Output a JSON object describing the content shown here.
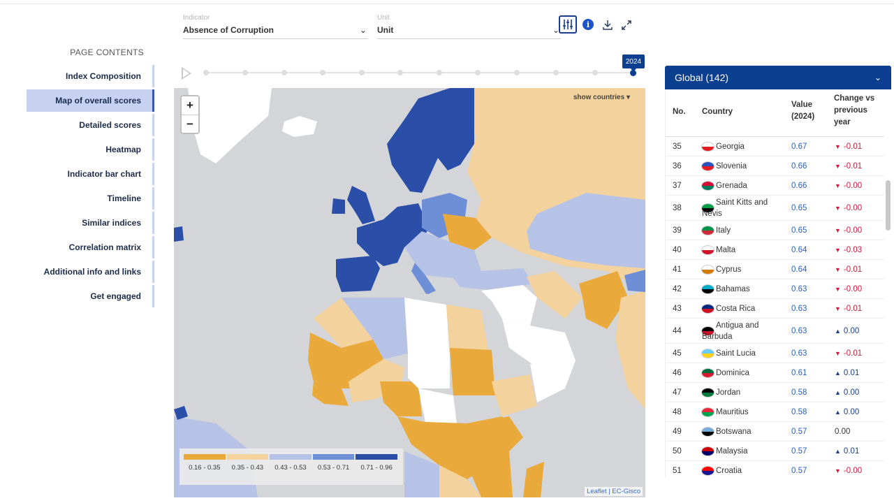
{
  "sidebar": {
    "heading": "PAGE CONTENTS",
    "items": [
      {
        "label": "Index Composition"
      },
      {
        "label": "Map of overall scores",
        "active": true
      },
      {
        "label": "Detailed scores"
      },
      {
        "label": "Heatmap"
      },
      {
        "label": "Indicator bar chart"
      },
      {
        "label": "Timeline"
      },
      {
        "label": "Similar indices"
      },
      {
        "label": "Correlation matrix"
      },
      {
        "label": "Additional info and links"
      },
      {
        "label": "Get engaged"
      }
    ]
  },
  "controls": {
    "indicator": {
      "label": "Indicator",
      "value": "Absence of Corruption"
    },
    "unit": {
      "label": "Unit",
      "value": "Unit"
    },
    "icons": [
      "filter-sliders-icon",
      "info-icon",
      "download-icon",
      "expand-icon"
    ]
  },
  "timeline": {
    "selected_year": "2024"
  },
  "map": {
    "zoom_in": "+",
    "zoom_out": "−",
    "show_countries": "show countries",
    "legend": [
      {
        "range": "0.16 - 0.35",
        "color": "#e9a93b"
      },
      {
        "range": "0.35 - 0.43",
        "color": "#f3d29e"
      },
      {
        "range": "0.43 - 0.53",
        "color": "#b6c3e6"
      },
      {
        "range": "0.53 - 0.71",
        "color": "#6e8fd6"
      },
      {
        "range": "0.71 - 0.96",
        "color": "#2b4fa8"
      }
    ],
    "attribution_leaflet": "Leaflet",
    "attribution_sep": " | ",
    "attribution_source": "EC-Gisco"
  },
  "panel": {
    "title": "Global (142)",
    "columns": {
      "no": "No.",
      "country": "Country",
      "value": "Value\n(2024)",
      "change": "Change vs\nprevious\nyear"
    },
    "rows": [
      {
        "no": "35",
        "country": "Georgia",
        "value": "0.67",
        "change": "-0.01",
        "dir": "down",
        "flag": [
          "#ffffff",
          "#e31b23"
        ]
      },
      {
        "no": "36",
        "country": "Slovenia",
        "value": "0.66",
        "change": "-0.01",
        "dir": "down",
        "flag": [
          "#2a52be",
          "#e31b23"
        ]
      },
      {
        "no": "37",
        "country": "Grenada",
        "value": "0.66",
        "change": "-0.00",
        "dir": "down",
        "flag": [
          "#d21034",
          "#007a5e"
        ]
      },
      {
        "no": "38",
        "country": "Saint Kitts and Nevis",
        "value": "0.65",
        "change": "-0.00",
        "dir": "down",
        "flag": [
          "#009e49",
          "#000000"
        ],
        "tall": true
      },
      {
        "no": "39",
        "country": "Italy",
        "value": "0.65",
        "change": "-0.00",
        "dir": "down",
        "flag": [
          "#009246",
          "#ce2b37"
        ]
      },
      {
        "no": "40",
        "country": "Malta",
        "value": "0.64",
        "change": "-0.03",
        "dir": "down",
        "flag": [
          "#ffffff",
          "#cf142b"
        ]
      },
      {
        "no": "41",
        "country": "Cyprus",
        "value": "0.64",
        "change": "-0.01",
        "dir": "down",
        "flag": [
          "#ffffff",
          "#d57800"
        ]
      },
      {
        "no": "42",
        "country": "Bahamas",
        "value": "0.63",
        "change": "-0.00",
        "dir": "down",
        "flag": [
          "#00abc9",
          "#000000"
        ]
      },
      {
        "no": "43",
        "country": "Costa Rica",
        "value": "0.63",
        "change": "-0.01",
        "dir": "down",
        "flag": [
          "#002b7f",
          "#ce1126"
        ]
      },
      {
        "no": "44",
        "country": "Antigua and Barbuda",
        "value": "0.63",
        "change": "0.00",
        "dir": "up",
        "flag": [
          "#000000",
          "#ce1126"
        ],
        "tall": true
      },
      {
        "no": "45",
        "country": "Saint Lucia",
        "value": "0.63",
        "change": "-0.01",
        "dir": "down",
        "flag": [
          "#66ccff",
          "#fcd116"
        ]
      },
      {
        "no": "46",
        "country": "Dominica",
        "value": "0.61",
        "change": "0.01",
        "dir": "up",
        "flag": [
          "#006b3f",
          "#d41c30"
        ]
      },
      {
        "no": "47",
        "country": "Jordan",
        "value": "0.58",
        "change": "0.00",
        "dir": "up",
        "flag": [
          "#000000",
          "#007a3d"
        ]
      },
      {
        "no": "48",
        "country": "Mauritius",
        "value": "0.58",
        "change": "0.00",
        "dir": "up",
        "flag": [
          "#ea2839",
          "#00a551"
        ]
      },
      {
        "no": "49",
        "country": "Botswana",
        "value": "0.57",
        "change": "0.00",
        "dir": "none",
        "flag": [
          "#75aadb",
          "#000000"
        ]
      },
      {
        "no": "50",
        "country": "Malaysia",
        "value": "0.57",
        "change": "0.01",
        "dir": "up",
        "flag": [
          "#cc0001",
          "#010066"
        ]
      },
      {
        "no": "51",
        "country": "Croatia",
        "value": "0.57",
        "change": "-0.00",
        "dir": "down",
        "flag": [
          "#ff0000",
          "#171796"
        ]
      }
    ]
  }
}
